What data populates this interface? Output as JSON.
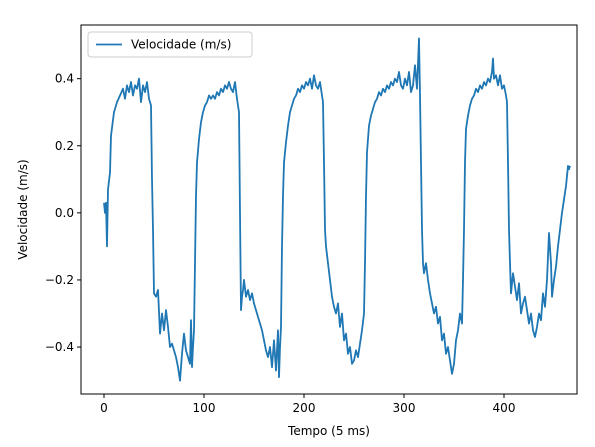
{
  "chart_data": {
    "type": "line",
    "title": "",
    "xlabel": "Tempo (5 ms)",
    "ylabel": "Velocidade (m/s)",
    "xlim": [
      -23,
      473
    ],
    "ylim": [
      -0.54,
      0.56
    ],
    "xticks": [
      0,
      100,
      200,
      300,
      400
    ],
    "yticks": [
      -0.4,
      -0.2,
      0.0,
      0.2,
      0.4
    ],
    "xtick_labels": [
      "0",
      "100",
      "200",
      "300",
      "400"
    ],
    "ytick_labels": [
      "−0.4",
      "−0.2",
      "0.0",
      "0.2",
      "0.4"
    ],
    "grid": false,
    "legend": {
      "position": "top-left",
      "entries": [
        "Velocidade (m/s)"
      ]
    },
    "series": [
      {
        "name": "Velocidade (m/s)",
        "color": "#1f77b4",
        "points": [
          [
            0,
            0.03
          ],
          [
            1,
            0.0
          ],
          [
            2,
            0.03
          ],
          [
            3,
            -0.1
          ],
          [
            4,
            0.07
          ],
          [
            6,
            0.12
          ],
          [
            7,
            0.23
          ],
          [
            10,
            0.3
          ],
          [
            13,
            0.33
          ],
          [
            16,
            0.35
          ],
          [
            19,
            0.37
          ],
          [
            21,
            0.34
          ],
          [
            23,
            0.38
          ],
          [
            25,
            0.36
          ],
          [
            27,
            0.39
          ],
          [
            29,
            0.35
          ],
          [
            31,
            0.38
          ],
          [
            33,
            0.37
          ],
          [
            35,
            0.4
          ],
          [
            37,
            0.33
          ],
          [
            39,
            0.38
          ],
          [
            41,
            0.36
          ],
          [
            43,
            0.39
          ],
          [
            45,
            0.34
          ],
          [
            47,
            0.32
          ],
          [
            48,
            0.1
          ],
          [
            49,
            -0.05
          ],
          [
            50,
            -0.24
          ],
          [
            52,
            -0.25
          ],
          [
            54,
            -0.23
          ],
          [
            56,
            -0.36
          ],
          [
            58,
            -0.3
          ],
          [
            60,
            -0.35
          ],
          [
            62,
            -0.29
          ],
          [
            64,
            -0.34
          ],
          [
            66,
            -0.4
          ],
          [
            68,
            -0.39
          ],
          [
            70,
            -0.41
          ],
          [
            72,
            -0.43
          ],
          [
            74,
            -0.46
          ],
          [
            76,
            -0.5
          ],
          [
            78,
            -0.42
          ],
          [
            80,
            -0.36
          ],
          [
            82,
            -0.41
          ],
          [
            84,
            -0.43
          ],
          [
            86,
            -0.45
          ],
          [
            87,
            -0.32
          ],
          [
            88,
            -0.46
          ],
          [
            89,
            -0.4
          ],
          [
            90,
            -0.35
          ],
          [
            91,
            -0.15
          ],
          [
            92,
            0.05
          ],
          [
            93,
            0.15
          ],
          [
            95,
            0.22
          ],
          [
            97,
            0.27
          ],
          [
            99,
            0.3
          ],
          [
            101,
            0.32
          ],
          [
            103,
            0.33
          ],
          [
            105,
            0.35
          ],
          [
            107,
            0.34
          ],
          [
            109,
            0.35
          ],
          [
            111,
            0.34
          ],
          [
            113,
            0.36
          ],
          [
            115,
            0.35
          ],
          [
            117,
            0.37
          ],
          [
            119,
            0.36
          ],
          [
            121,
            0.38
          ],
          [
            123,
            0.37
          ],
          [
            125,
            0.39
          ],
          [
            127,
            0.37
          ],
          [
            129,
            0.36
          ],
          [
            131,
            0.39
          ],
          [
            133,
            0.34
          ],
          [
            134,
            0.32
          ],
          [
            135,
            0.3
          ],
          [
            136,
            0.0
          ],
          [
            137,
            -0.29
          ],
          [
            138,
            -0.25
          ],
          [
            139,
            -0.23
          ],
          [
            140,
            -0.2
          ],
          [
            142,
            -0.25
          ],
          [
            144,
            -0.23
          ],
          [
            146,
            -0.26
          ],
          [
            148,
            -0.24
          ],
          [
            150,
            -0.27
          ],
          [
            152,
            -0.29
          ],
          [
            154,
            -0.31
          ],
          [
            156,
            -0.33
          ],
          [
            158,
            -0.35
          ],
          [
            160,
            -0.38
          ],
          [
            162,
            -0.41
          ],
          [
            164,
            -0.43
          ],
          [
            166,
            -0.4
          ],
          [
            168,
            -0.46
          ],
          [
            170,
            -0.38
          ],
          [
            172,
            -0.47
          ],
          [
            174,
            -0.35
          ],
          [
            175,
            -0.49
          ],
          [
            176,
            -0.4
          ],
          [
            177,
            -0.34
          ],
          [
            178,
            -0.1
          ],
          [
            179,
            0.05
          ],
          [
            180,
            0.15
          ],
          [
            182,
            0.21
          ],
          [
            184,
            0.26
          ],
          [
            186,
            0.3
          ],
          [
            188,
            0.32
          ],
          [
            190,
            0.34
          ],
          [
            192,
            0.35
          ],
          [
            194,
            0.37
          ],
          [
            196,
            0.36
          ],
          [
            198,
            0.38
          ],
          [
            200,
            0.37
          ],
          [
            202,
            0.39
          ],
          [
            204,
            0.38
          ],
          [
            206,
            0.4
          ],
          [
            208,
            0.37
          ],
          [
            210,
            0.41
          ],
          [
            212,
            0.38
          ],
          [
            214,
            0.37
          ],
          [
            216,
            0.39
          ],
          [
            218,
            0.35
          ],
          [
            219,
            0.33
          ],
          [
            220,
            0.15
          ],
          [
            221,
            -0.05
          ],
          [
            222,
            -0.1
          ],
          [
            224,
            -0.15
          ],
          [
            226,
            -0.2
          ],
          [
            228,
            -0.25
          ],
          [
            230,
            -0.28
          ],
          [
            232,
            -0.3
          ],
          [
            234,
            -0.27
          ],
          [
            236,
            -0.34
          ],
          [
            238,
            -0.3
          ],
          [
            240,
            -0.38
          ],
          [
            242,
            -0.36
          ],
          [
            244,
            -0.42
          ],
          [
            246,
            -0.4
          ],
          [
            248,
            -0.45
          ],
          [
            250,
            -0.44
          ],
          [
            252,
            -0.41
          ],
          [
            254,
            -0.43
          ],
          [
            256,
            -0.39
          ],
          [
            258,
            -0.35
          ],
          [
            260,
            -0.3
          ],
          [
            261,
            -0.15
          ],
          [
            262,
            0.05
          ],
          [
            263,
            0.18
          ],
          [
            265,
            0.26
          ],
          [
            267,
            0.29
          ],
          [
            269,
            0.31
          ],
          [
            271,
            0.33
          ],
          [
            273,
            0.34
          ],
          [
            275,
            0.36
          ],
          [
            277,
            0.35
          ],
          [
            279,
            0.37
          ],
          [
            281,
            0.36
          ],
          [
            283,
            0.38
          ],
          [
            285,
            0.37
          ],
          [
            287,
            0.39
          ],
          [
            289,
            0.38
          ],
          [
            291,
            0.4
          ],
          [
            293,
            0.39
          ],
          [
            295,
            0.42
          ],
          [
            297,
            0.38
          ],
          [
            299,
            0.37
          ],
          [
            301,
            0.4
          ],
          [
            303,
            0.38
          ],
          [
            305,
            0.42
          ],
          [
            307,
            0.36
          ],
          [
            309,
            0.38
          ],
          [
            311,
            0.44
          ],
          [
            313,
            0.37
          ],
          [
            315,
            0.52
          ],
          [
            316,
            0.35
          ],
          [
            317,
            0.15
          ],
          [
            318,
            -0.05
          ],
          [
            319,
            -0.15
          ],
          [
            320,
            -0.18
          ],
          [
            322,
            -0.15
          ],
          [
            324,
            -0.2
          ],
          [
            326,
            -0.24
          ],
          [
            328,
            -0.27
          ],
          [
            330,
            -0.3
          ],
          [
            332,
            -0.28
          ],
          [
            334,
            -0.33
          ],
          [
            336,
            -0.31
          ],
          [
            338,
            -0.38
          ],
          [
            340,
            -0.36
          ],
          [
            342,
            -0.42
          ],
          [
            344,
            -0.4
          ],
          [
            346,
            -0.44
          ],
          [
            348,
            -0.48
          ],
          [
            350,
            -0.45
          ],
          [
            352,
            -0.38
          ],
          [
            354,
            -0.35
          ],
          [
            356,
            -0.3
          ],
          [
            358,
            -0.33
          ],
          [
            359,
            -0.2
          ],
          [
            360,
            -0.05
          ],
          [
            361,
            0.15
          ],
          [
            362,
            0.25
          ],
          [
            364,
            0.29
          ],
          [
            366,
            0.32
          ],
          [
            368,
            0.34
          ],
          [
            370,
            0.35
          ],
          [
            372,
            0.37
          ],
          [
            374,
            0.36
          ],
          [
            376,
            0.38
          ],
          [
            378,
            0.37
          ],
          [
            380,
            0.39
          ],
          [
            382,
            0.38
          ],
          [
            384,
            0.4
          ],
          [
            386,
            0.39
          ],
          [
            388,
            0.42
          ],
          [
            389,
            0.46
          ],
          [
            390,
            0.4
          ],
          [
            392,
            0.41
          ],
          [
            394,
            0.38
          ],
          [
            396,
            0.41
          ],
          [
            398,
            0.37
          ],
          [
            400,
            0.38
          ],
          [
            402,
            0.35
          ],
          [
            403,
            0.33
          ],
          [
            404,
            0.15
          ],
          [
            405,
            -0.05
          ],
          [
            406,
            -0.15
          ],
          [
            407,
            -0.24
          ],
          [
            409,
            -0.18
          ],
          [
            411,
            -0.22
          ],
          [
            413,
            -0.26
          ],
          [
            415,
            -0.21
          ],
          [
            417,
            -0.3
          ],
          [
            419,
            -0.27
          ],
          [
            421,
            -0.25
          ],
          [
            423,
            -0.29
          ],
          [
            425,
            -0.33
          ],
          [
            427,
            -0.3
          ],
          [
            429,
            -0.35
          ],
          [
            431,
            -0.37
          ],
          [
            433,
            -0.34
          ],
          [
            435,
            -0.3
          ],
          [
            437,
            -0.32
          ],
          [
            439,
            -0.24
          ],
          [
            441,
            -0.28
          ],
          [
            443,
            -0.2
          ],
          [
            445,
            -0.06
          ],
          [
            447,
            -0.15
          ],
          [
            448,
            -0.25
          ],
          [
            450,
            -0.2
          ],
          [
            452,
            -0.16
          ],
          [
            454,
            -0.1
          ],
          [
            456,
            -0.05
          ],
          [
            458,
            0.0
          ],
          [
            460,
            0.04
          ],
          [
            462,
            0.08
          ],
          [
            464,
            0.14
          ],
          [
            465,
            0.13
          ],
          [
            466,
            0.14
          ]
        ]
      }
    ]
  }
}
